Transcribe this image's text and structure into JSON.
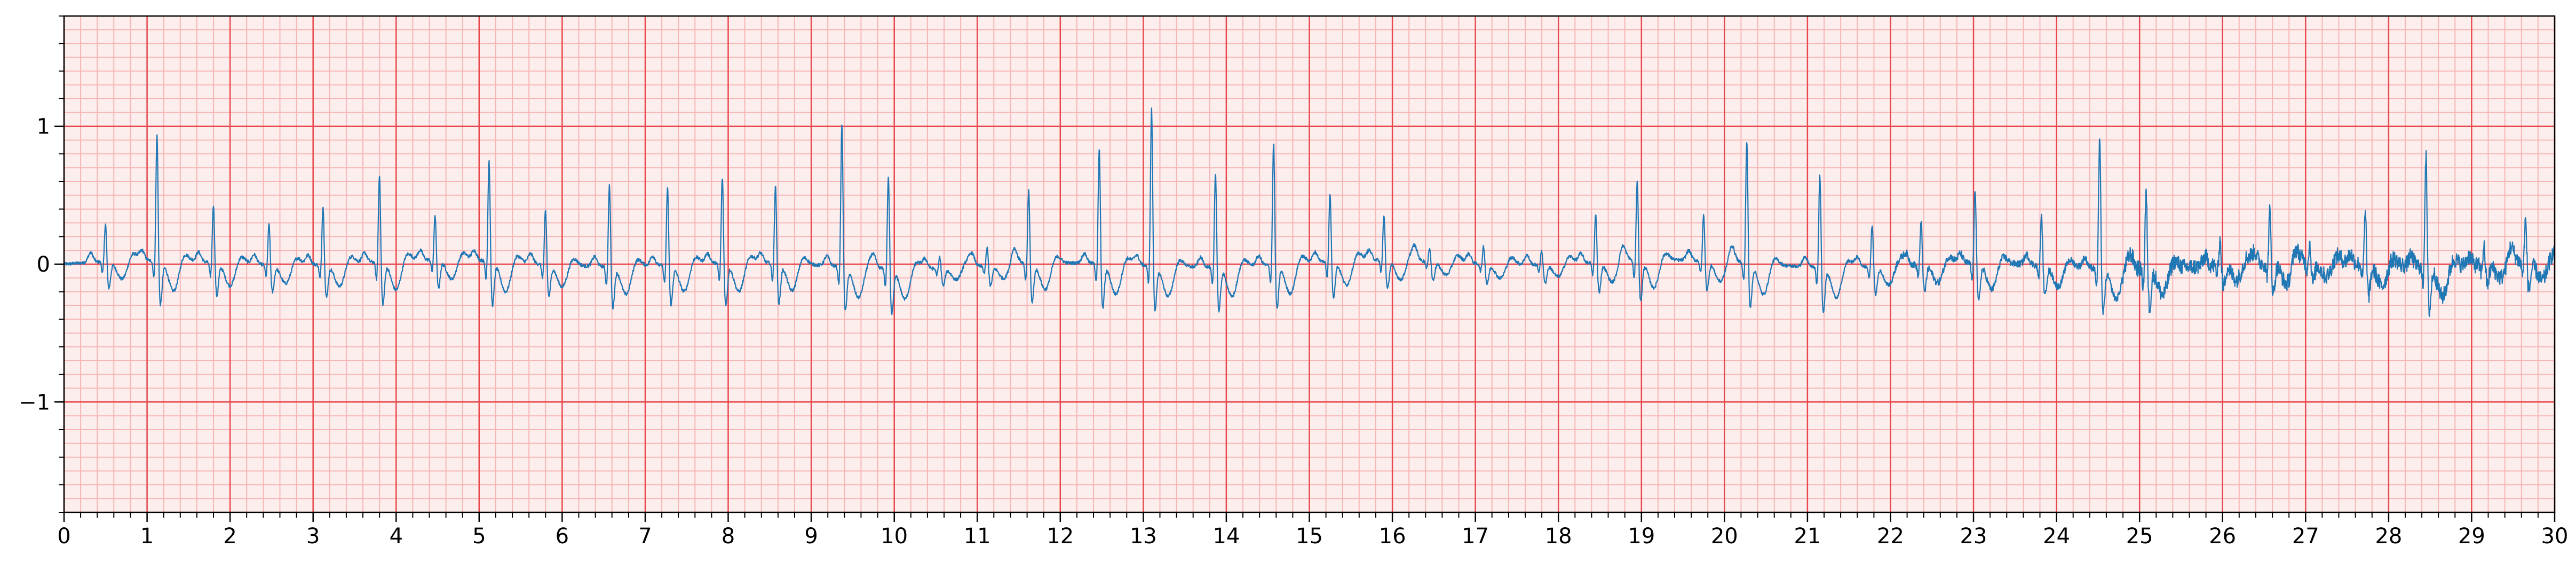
{
  "chart_data": {
    "type": "line",
    "title": "",
    "xlabel": "",
    "ylabel": "",
    "xlim": [
      0,
      30
    ],
    "ylim": [
      -1.8,
      1.8
    ],
    "x_ticks": [
      0,
      1,
      2,
      3,
      4,
      5,
      6,
      7,
      8,
      9,
      10,
      11,
      12,
      13,
      14,
      15,
      16,
      17,
      18,
      19,
      20,
      21,
      22,
      23,
      24,
      25,
      26,
      27,
      28,
      29,
      30
    ],
    "x_tick_labels": [
      "0",
      "1",
      "2",
      "3",
      "4",
      "5",
      "6",
      "7",
      "8",
      "9",
      "10",
      "11",
      "12",
      "13",
      "14",
      "15",
      "16",
      "17",
      "18",
      "19",
      "20",
      "21",
      "22",
      "23",
      "24",
      "25",
      "26",
      "27",
      "28",
      "29",
      "30"
    ],
    "y_ticks": [
      -1,
      0,
      1
    ],
    "y_tick_labels": [
      "−1",
      "0",
      "1"
    ],
    "x_minor_step": 0.2,
    "y_minor_step": 0.1,
    "grid": {
      "major": true,
      "minor": true,
      "major_color": "#e8474b",
      "minor_color": "#f7b5b5"
    },
    "background_color": "#fdeeee",
    "line_color": "#1f77b4",
    "legend": "none",
    "series": [
      {
        "beats": [
          [
            0.5,
            0.3
          ],
          [
            1.12,
            0.95
          ],
          [
            1.8,
            0.45
          ],
          [
            2.47,
            0.32
          ],
          [
            3.12,
            0.45
          ],
          [
            3.8,
            0.67
          ],
          [
            4.47,
            0.35
          ],
          [
            5.12,
            0.77
          ],
          [
            5.8,
            0.42
          ],
          [
            6.57,
            0.63
          ],
          [
            7.27,
            0.6
          ],
          [
            7.93,
            0.66
          ],
          [
            8.57,
            0.6
          ],
          [
            9.37,
            1.07
          ],
          [
            9.93,
            0.7
          ],
          [
            10.55,
            0.1
          ],
          [
            11.12,
            0.15
          ],
          [
            11.62,
            0.57
          ],
          [
            12.47,
            0.87
          ],
          [
            13.1,
            1.18
          ],
          [
            13.87,
            0.73
          ],
          [
            14.57,
            0.93
          ],
          [
            15.25,
            0.52
          ],
          [
            15.9,
            0.35
          ],
          [
            16.45,
            0.12
          ],
          [
            17.1,
            0.15
          ],
          [
            17.8,
            0.12
          ],
          [
            18.45,
            0.38
          ],
          [
            18.95,
            0.62
          ],
          [
            19.75,
            0.36
          ],
          [
            20.27,
            0.93
          ],
          [
            21.15,
            0.71
          ],
          [
            21.78,
            0.33
          ],
          [
            22.37,
            0.33
          ],
          [
            23.02,
            0.57
          ],
          [
            23.82,
            0.38
          ],
          [
            24.52,
            0.98
          ],
          [
            25.08,
            0.58
          ],
          [
            25.97,
            0.2
          ],
          [
            26.57,
            0.4
          ],
          [
            27.05,
            0.15
          ],
          [
            27.72,
            0.39
          ],
          [
            28.45,
            0.85
          ],
          [
            29.15,
            0.15
          ],
          [
            29.65,
            0.33
          ]
        ]
      }
    ]
  }
}
